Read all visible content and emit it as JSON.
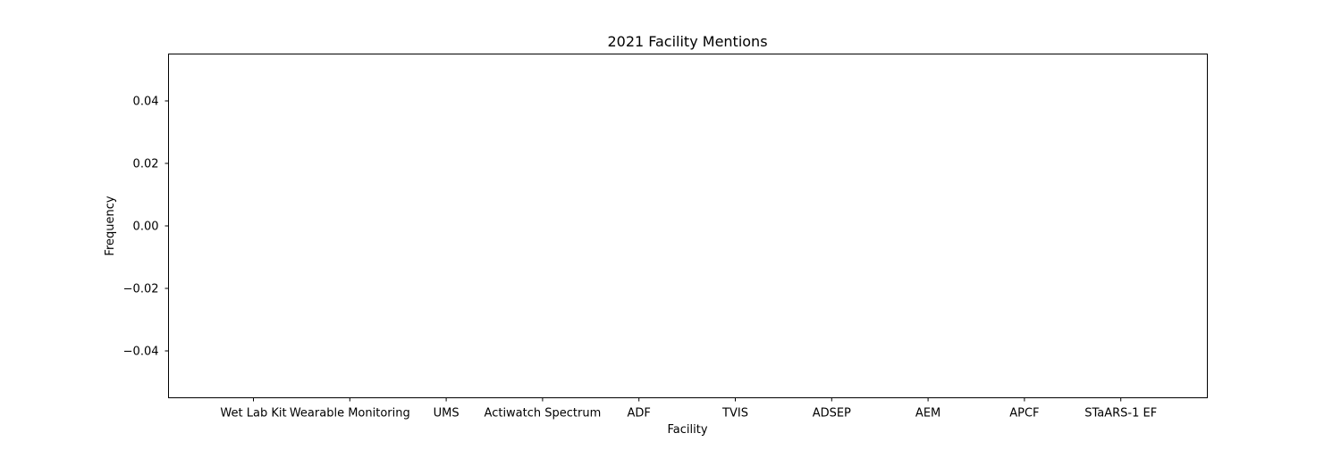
{
  "chart_data": {
    "type": "bar",
    "title": "2021 Facility Mentions",
    "xlabel": "Facility",
    "ylabel": "Frequency",
    "categories": [
      "Wet Lab Kit",
      "Wearable Monitoring",
      "UMS",
      "Actiwatch Spectrum",
      "ADF",
      "TVIS",
      "ADSEP",
      "AEM",
      "APCF",
      "STaARS-1 EF"
    ],
    "values": [
      0,
      0,
      0,
      0,
      0,
      0,
      0,
      0,
      0,
      0
    ],
    "ylim": [
      -0.055,
      0.055
    ],
    "yticks": [
      -0.04,
      -0.02,
      0.0,
      0.02,
      0.04
    ],
    "ytick_labels": [
      "−0.04",
      "−0.02",
      "0.00",
      "0.02",
      "0.04"
    ],
    "grid": false,
    "legend": "none"
  }
}
